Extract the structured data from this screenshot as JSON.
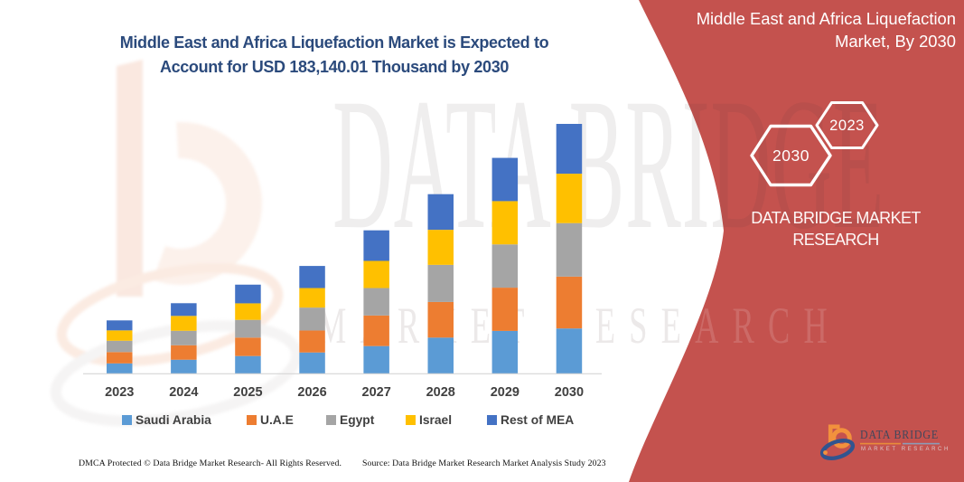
{
  "page": {
    "background": "#FFFFFF",
    "red_panel_color": "#C4524E"
  },
  "main_title": {
    "line1": "Middle East and Africa Liquefaction Market is Expected to",
    "line2": "Account for USD 183,140.01 Thousand by 2030",
    "color": "#2B4A7C"
  },
  "right_panel": {
    "title_line1": "Middle East and Africa Liquefaction",
    "title_line2": "Market, By 2030",
    "hexagon_front": "2030",
    "hexagon_back": "2023",
    "brand_line1": "DATA BRIDGE MARKET",
    "brand_line2": "RESEARCH"
  },
  "watermarks": {
    "big_text": "DATA BRIDGE",
    "sub_text": "MARKET RESEARCH"
  },
  "logo": {
    "name": "DATA BRIDGE",
    "subtext": "MARKET RESEARCH"
  },
  "footer": {
    "left": "DMCA Protected © Data Bridge Market Research-  All Rights Reserved.",
    "right": "Source: Data Bridge Market Research  Market Analysis Study 2023"
  },
  "chart_data": {
    "type": "bar",
    "stacked": true,
    "title": "Middle East and Africa Liquefaction Market is Expected to Account for USD 183,140.01 Thousand by 2030",
    "unit": "USD Thousand",
    "xlabel": "",
    "ylabel": "",
    "grid": false,
    "y_axis_visible": false,
    "legend_position": "bottom",
    "categories": [
      "2023",
      "2024",
      "2025",
      "2026",
      "2027",
      "2028",
      "2029",
      "2030"
    ],
    "series": [
      {
        "name": "Saudi Arabia",
        "color": "#5B9BD5",
        "values": [
          7600,
          10300,
          13000,
          15600,
          20300,
          26500,
          31400,
          33200
        ]
      },
      {
        "name": "U.A.E",
        "color": "#ED7D31",
        "values": [
          8300,
          10600,
          13500,
          16100,
          22400,
          26100,
          31700,
          38000
        ]
      },
      {
        "name": "Egypt",
        "color": "#A5A5A5",
        "values": [
          8300,
          10600,
          13000,
          16800,
          20100,
          27200,
          31700,
          39200
        ]
      },
      {
        "name": "Israel",
        "color": "#FFC000",
        "values": [
          7600,
          10900,
          12100,
          14300,
          19900,
          25700,
          31700,
          36200
        ]
      },
      {
        "name": "Rest of MEA",
        "color": "#4472C4",
        "values": [
          7300,
          9300,
          13700,
          16200,
          22400,
          26100,
          31700,
          36500
        ]
      }
    ],
    "totals_label": {
      "year": "2030",
      "value": "USD 183,140.01 Thousand"
    }
  }
}
